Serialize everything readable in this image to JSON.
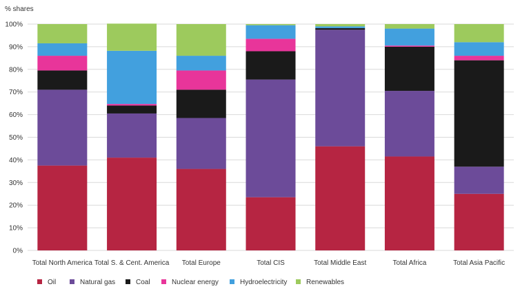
{
  "chart_data": {
    "type": "bar",
    "stacked": true,
    "title": "",
    "ylabel": "% shares",
    "xlabel": "",
    "ylim": [
      0,
      100
    ],
    "yticks": [
      "0%",
      "10%",
      "20%",
      "30%",
      "40%",
      "50%",
      "60%",
      "70%",
      "80%",
      "90%",
      "100%"
    ],
    "grid": "horizontal",
    "legend_position": "bottom",
    "categories": [
      "Total North America",
      "Total S. & Cent. America",
      "Total Europe",
      "Total CIS",
      "Total Middle East",
      "Total Africa",
      "Total Asia Pacific"
    ],
    "series": [
      {
        "name": "Oil",
        "color": "#b62542",
        "values": [
          37.5,
          41,
          36,
          23.5,
          46,
          41.5,
          25
        ]
      },
      {
        "name": "Natural gas",
        "color": "#6c4b99",
        "values": [
          33.5,
          19.5,
          22.5,
          52,
          51.5,
          29,
          12
        ]
      },
      {
        "name": "Coal",
        "color": "#1a1a1a",
        "values": [
          8.5,
          3.5,
          12.5,
          12.5,
          0.7,
          19.5,
          47
        ]
      },
      {
        "name": "Nuclear energy",
        "color": "#e8359a",
        "values": [
          6.5,
          0.7,
          8.5,
          5.5,
          0,
          0.5,
          2
        ]
      },
      {
        "name": "Hydroelectricity",
        "color": "#42a0de",
        "values": [
          5.5,
          23.5,
          6.5,
          6,
          0.8,
          7.5,
          6
        ]
      },
      {
        "name": "Renewables",
        "color": "#9dca5d",
        "values": [
          8.5,
          12,
          14,
          0.5,
          1,
          2,
          8
        ]
      }
    ]
  }
}
